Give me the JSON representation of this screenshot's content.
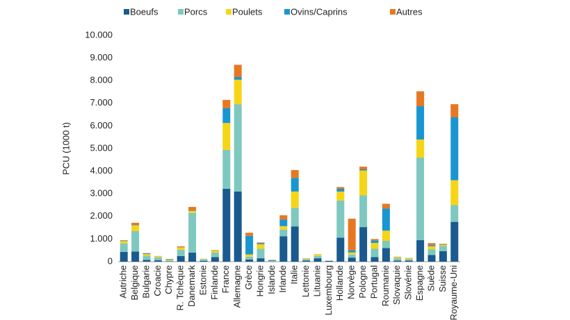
{
  "chart_data": {
    "type": "stacked-bar",
    "y_label": "PCU (1000 t)",
    "categories": [
      "Autriche",
      "Belgique",
      "Bulgarie",
      "Croacie",
      "Chypre",
      "R. Tchèque",
      "Danemark",
      "Estonie",
      "Finlande",
      "France",
      "Allemagne",
      "Grèce",
      "Hongrie",
      "Islande",
      "Irlande",
      "Italie",
      "Lettonie",
      "Lituanie",
      "Luxembourg",
      "Hollande",
      "Norvège",
      "Pologne",
      "Portugal",
      "Roumanie",
      "Slovaquie",
      "Slovénie",
      "Espagne",
      "Suède",
      "Suisse",
      "Royaume-Uni"
    ],
    "series": [
      {
        "name": "Boeufs",
        "color": "#1a5a8e",
        "values": [
          430,
          450,
          80,
          60,
          10,
          250,
          400,
          40,
          200,
          3220,
          3100,
          100,
          150,
          10,
          1120,
          1560,
          50,
          150,
          30,
          1060,
          180,
          1530,
          200,
          600,
          50,
          50,
          950,
          300,
          460,
          1760
        ]
      },
      {
        "name": "Porcs",
        "color": "#7ec8c0",
        "values": [
          380,
          900,
          180,
          130,
          50,
          280,
          1750,
          60,
          200,
          1720,
          3860,
          120,
          420,
          10,
          300,
          820,
          60,
          100,
          15,
          1640,
          130,
          1400,
          380,
          320,
          100,
          60,
          3650,
          250,
          230,
          740
        ]
      },
      {
        "name": "Poulets",
        "color": "#f6d517",
        "values": [
          100,
          250,
          80,
          50,
          30,
          100,
          100,
          20,
          100,
          1190,
          1080,
          100,
          200,
          10,
          150,
          720,
          30,
          70,
          2,
          400,
          100,
          1100,
          250,
          450,
          50,
          50,
          800,
          130,
          60,
          1100
        ]
      },
      {
        "name": "Ovins/Caprins",
        "color": "#1996d2",
        "values": [
          20,
          20,
          30,
          5,
          20,
          10,
          20,
          5,
          10,
          650,
          120,
          820,
          50,
          40,
          290,
          600,
          5,
          5,
          2,
          120,
          100,
          50,
          110,
          980,
          10,
          5,
          1470,
          50,
          20,
          2780
        ]
      },
      {
        "name": "Autres",
        "color": "#e87722",
        "values": [
          20,
          100,
          10,
          5,
          10,
          40,
          150,
          5,
          10,
          370,
          540,
          140,
          30,
          10,
          190,
          350,
          5,
          5,
          1,
          80,
          1390,
          120,
          60,
          210,
          10,
          5,
          660,
          90,
          20,
          580
        ]
      }
    ],
    "ylim": [
      0,
      10000
    ],
    "yticks": [
      0,
      {
        "value": 1000,
        "label": "1.000"
      },
      {
        "value": 2000,
        "label": "2.000"
      },
      {
        "value": 3000,
        "label": "3.000"
      },
      {
        "value": 4000,
        "label": "4.000"
      },
      {
        "value": 5000,
        "label": "5.000"
      },
      {
        "value": 6000,
        "label": "6.000"
      },
      {
        "value": 7000,
        "label": "7.000"
      },
      {
        "value": 8000,
        "label": "8.000"
      },
      {
        "value": 9000,
        "label": "9.000"
      },
      {
        "value": 10000,
        "label": "10.000"
      }
    ]
  }
}
